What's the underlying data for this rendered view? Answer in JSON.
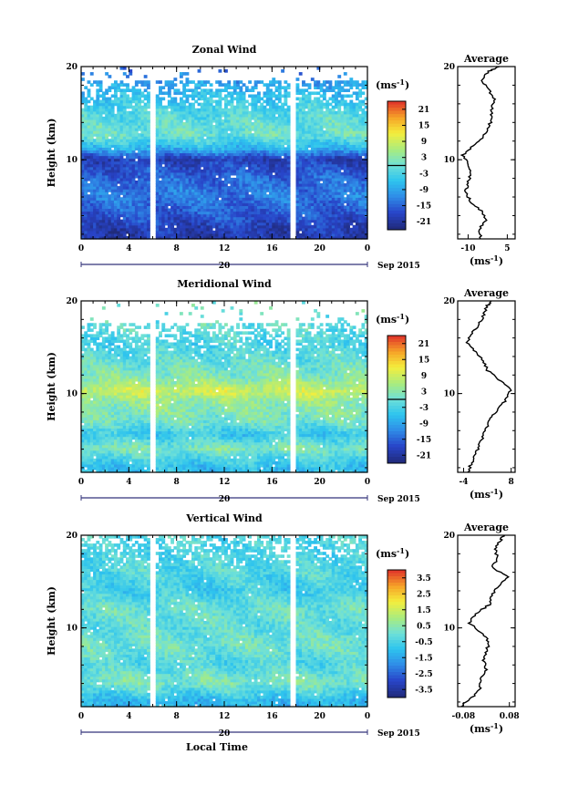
{
  "chart_data": [
    {
      "type": "heatmap",
      "title": "Zonal Wind",
      "ylabel": "Height (km)",
      "xlabel": "",
      "xlim": [
        0,
        24
      ],
      "ylim": [
        1.5,
        20
      ],
      "x_ticks": [
        "0",
        "4",
        "8",
        "12",
        "16",
        "20",
        "0"
      ],
      "x_tick_values": [
        0,
        4,
        8,
        12,
        16,
        20,
        24
      ],
      "y_ticks": [
        "10",
        "20"
      ],
      "y_tick_values": [
        10,
        20
      ],
      "date_ticks": [
        "20"
      ],
      "date_label": "Sep 2015",
      "gaps_hours": [
        [
          5.8,
          6.1
        ],
        [
          17.6,
          17.8
        ]
      ],
      "colorbar": {
        "unit": "(ms",
        "unit_exp": "-1",
        "unit_close": ")",
        "ticks": [
          "21",
          "15",
          "9",
          "3",
          "-3",
          "-9",
          "-15",
          "-21"
        ],
        "min": -24,
        "max": 24,
        "zero_line": true
      },
      "profile": {
        "title": "Average",
        "xlim": [
          -14,
          8
        ],
        "x_ticks": [
          "-10",
          "5"
        ],
        "x_tick_values": [
          -10,
          5
        ],
        "xlabel": "(ms",
        "xlabel_exp": "-1",
        "xlabel_close": ")",
        "heights": [
          1.5,
          2.5,
          3.5,
          4.5,
          5.5,
          6.5,
          7.5,
          8.5,
          9.5,
          10.5,
          11.5,
          12.5,
          13.5,
          14.5,
          15.5,
          16.5,
          17.5,
          18.5,
          19.5,
          20
        ],
        "values": [
          -5,
          -6,
          -3,
          -5,
          -9,
          -11,
          -10,
          -9,
          -10,
          -12,
          -8,
          -4,
          -2,
          -1,
          -1,
          0,
          -2,
          -5,
          -2,
          2
        ]
      },
      "field": {
        "layers": [
          {
            "h": 2,
            "v": -20
          },
          {
            "h": 4,
            "v": -16
          },
          {
            "h": 6,
            "v": -13
          },
          {
            "h": 8,
            "v": -15
          },
          {
            "h": 10,
            "v": -19
          },
          {
            "h": 11,
            "v": -8
          },
          {
            "h": 12.5,
            "v": 0
          },
          {
            "h": 14,
            "v": -1
          },
          {
            "h": 16,
            "v": -4
          },
          {
            "h": 18,
            "v": -9
          },
          {
            "h": 19.5,
            "v": -14
          }
        ],
        "data_top": 18.5
      }
    },
    {
      "type": "heatmap",
      "title": "Meridional Wind",
      "ylabel": "Height (km)",
      "xlabel": "",
      "xlim": [
        0,
        24
      ],
      "ylim": [
        1.5,
        20
      ],
      "x_ticks": [
        "0",
        "4",
        "8",
        "12",
        "16",
        "20",
        "0"
      ],
      "x_tick_values": [
        0,
        4,
        8,
        12,
        16,
        20,
        24
      ],
      "y_ticks": [
        "10",
        "20"
      ],
      "y_tick_values": [
        10,
        20
      ],
      "date_ticks": [
        "20"
      ],
      "date_label": "Sep 2015",
      "gaps_hours": [
        [
          5.8,
          6.1
        ],
        [
          17.6,
          17.8
        ]
      ],
      "colorbar": {
        "unit": "(ms",
        "unit_exp": "-1",
        "unit_close": ")",
        "ticks": [
          "21",
          "15",
          "9",
          "3",
          "-3",
          "-9",
          "-15",
          "-21"
        ],
        "min": -24,
        "max": 24,
        "zero_line": true
      },
      "profile": {
        "title": "Average",
        "xlim": [
          -5.5,
          9
        ],
        "x_ticks": [
          "-4",
          "8"
        ],
        "x_tick_values": [
          -4,
          8
        ],
        "xlabel": "(ms",
        "xlabel_exp": "-1",
        "xlabel_close": ")",
        "heights": [
          1.5,
          2.5,
          3.5,
          4.5,
          5.5,
          6.5,
          7.5,
          8.5,
          9.5,
          10.5,
          11.5,
          12.5,
          13.5,
          14.5,
          15.5,
          16.5,
          17.5,
          18.5,
          19.5,
          20
        ],
        "values": [
          -3,
          -2,
          -1,
          0,
          1,
          2,
          3,
          5,
          7,
          8,
          5,
          2,
          1,
          -1,
          -3,
          -2,
          0,
          1,
          2,
          3
        ]
      },
      "field": {
        "layers": [
          {
            "h": 2,
            "v": -6
          },
          {
            "h": 4,
            "v": 2
          },
          {
            "h": 5.5,
            "v": -5
          },
          {
            "h": 7,
            "v": 1
          },
          {
            "h": 9,
            "v": 4
          },
          {
            "h": 10.2,
            "v": 9
          },
          {
            "h": 11.5,
            "v": 3
          },
          {
            "h": 13,
            "v": 0
          },
          {
            "h": 15,
            "v": -3
          },
          {
            "h": 17,
            "v": -1
          },
          {
            "h": 19.5,
            "v": 1
          }
        ],
        "data_top": 17.5
      }
    },
    {
      "type": "heatmap",
      "title": "Vertical Wind",
      "ylabel": "Height (km)",
      "xlabel": "Local Time",
      "xlim": [
        0,
        24
      ],
      "ylim": [
        1.5,
        20
      ],
      "x_ticks": [
        "0",
        "4",
        "8",
        "12",
        "16",
        "20",
        "0"
      ],
      "x_tick_values": [
        0,
        4,
        8,
        12,
        16,
        20,
        24
      ],
      "y_ticks": [
        "10",
        "20"
      ],
      "y_tick_values": [
        10,
        20
      ],
      "date_ticks": [
        "20"
      ],
      "date_label": "Sep 2015",
      "gaps_hours": [
        [
          5.8,
          6.1
        ],
        [
          17.6,
          17.8
        ]
      ],
      "colorbar": {
        "unit": "(ms",
        "unit_exp": "-1",
        "unit_close": ")",
        "ticks": [
          "3.5",
          "2.5",
          "1.5",
          "0.5",
          "-0.5",
          "-1.5",
          "-2.5",
          "-3.5"
        ],
        "min": -4,
        "max": 4,
        "zero_line": false
      },
      "profile": {
        "title": "Average",
        "xlim": [
          -0.1,
          0.1
        ],
        "x_ticks": [
          "-0.08",
          "0.08"
        ],
        "x_tick_values": [
          -0.08,
          0.08
        ],
        "xlabel": "(ms",
        "xlabel_exp": "-1",
        "xlabel_close": ")",
        "heights": [
          1.5,
          2.5,
          3.5,
          4.5,
          5.5,
          6.5,
          7.5,
          8.5,
          9.5,
          10.5,
          11.5,
          12.5,
          13.5,
          14.5,
          15.5,
          16.5,
          17.5,
          18.5,
          19.5,
          20
        ],
        "values": [
          -0.09,
          -0.05,
          -0.02,
          -0.02,
          0.0,
          -0.01,
          0.0,
          0.01,
          -0.02,
          -0.06,
          -0.04,
          0.01,
          0.02,
          0.04,
          0.08,
          0.02,
          0.04,
          0.03,
          0.05,
          0.06
        ]
      },
      "field": {
        "layers": [
          {
            "h": 2,
            "v": -1.2
          },
          {
            "h": 4,
            "v": 0.3
          },
          {
            "h": 6,
            "v": -0.4
          },
          {
            "h": 8,
            "v": 0.1
          },
          {
            "h": 10,
            "v": -0.2
          },
          {
            "h": 12,
            "v": 0.0
          },
          {
            "h": 14,
            "v": -0.7
          },
          {
            "h": 16,
            "v": -0.3
          },
          {
            "h": 18,
            "v": -0.5
          },
          {
            "h": 20,
            "v": -0.4
          }
        ],
        "data_top": 20
      }
    }
  ]
}
